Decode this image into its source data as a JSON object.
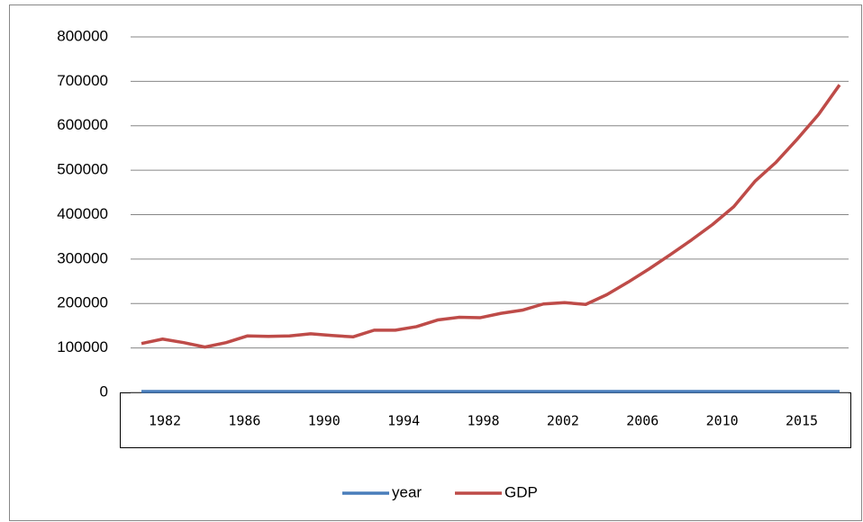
{
  "chart_data": {
    "type": "line",
    "x_labels": [
      "1982",
      "1986",
      "1990",
      "1994",
      "1998",
      "2002",
      "2006",
      "2010",
      "2015"
    ],
    "series": [
      {
        "name": "year",
        "color": "#4a7ebb",
        "values": [
          1981,
          1982,
          1983,
          1984,
          1985,
          1986,
          1987,
          1988,
          1989,
          1990,
          1991,
          1992,
          1993,
          1994,
          1995,
          1996,
          1997,
          1998,
          1999,
          2000,
          2001,
          2002,
          2003,
          2004,
          2005,
          2006,
          2007,
          2008,
          2009,
          2010,
          2011,
          2012,
          2013,
          2014
        ]
      },
      {
        "name": "GDP",
        "color": "#be4b48",
        "values": [
          110000,
          120000,
          112000,
          102000,
          112000,
          127000,
          126000,
          127000,
          132000,
          128000,
          125000,
          140000,
          140000,
          148000,
          163000,
          169000,
          168000,
          178000,
          185000,
          199000,
          202000,
          198000,
          220000,
          248000,
          278000,
          310000,
          343000,
          378000,
          418000,
          475000,
          518000,
          570000,
          625000,
          692000
        ]
      }
    ],
    "ylim": [
      0,
      800000
    ],
    "yticks": [
      0,
      100000,
      200000,
      300000,
      400000,
      500000,
      600000,
      700000,
      800000
    ],
    "grid": true,
    "legend": "bottom"
  }
}
